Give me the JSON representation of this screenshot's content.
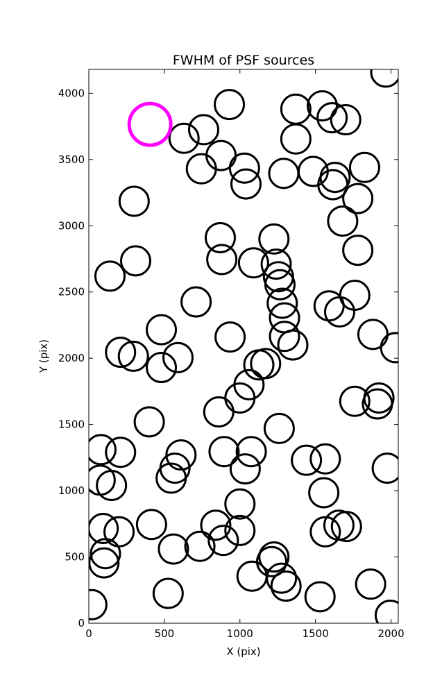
{
  "chart_data": {
    "type": "scatter",
    "title": "FWHM of PSF sources",
    "xlabel": "X (pix)",
    "ylabel": "Y (pix)",
    "xlim": [
      0,
      2048
    ],
    "ylim": [
      0,
      4180
    ],
    "xticks": [
      0,
      500,
      1000,
      1500,
      2000
    ],
    "yticks": [
      0,
      500,
      1000,
      1500,
      2000,
      2500,
      3000,
      3500,
      4000
    ],
    "grid": false,
    "marker": "open circle",
    "point_color": "#000000",
    "highlight_color": "#ff00ff",
    "highlight": {
      "x": 405,
      "y": 3765
    },
    "points": [
      {
        "x": 1965,
        "y": 4160
      },
      {
        "x": 930,
        "y": 3915
      },
      {
        "x": 1370,
        "y": 3880
      },
      {
        "x": 1545,
        "y": 3905
      },
      {
        "x": 1610,
        "y": 3815
      },
      {
        "x": 1700,
        "y": 3800
      },
      {
        "x": 760,
        "y": 3725
      },
      {
        "x": 630,
        "y": 3660
      },
      {
        "x": 1370,
        "y": 3655
      },
      {
        "x": 875,
        "y": 3530
      },
      {
        "x": 745,
        "y": 3430
      },
      {
        "x": 1030,
        "y": 3435
      },
      {
        "x": 1290,
        "y": 3395
      },
      {
        "x": 1485,
        "y": 3410
      },
      {
        "x": 1630,
        "y": 3365
      },
      {
        "x": 1615,
        "y": 3310
      },
      {
        "x": 1040,
        "y": 3315
      },
      {
        "x": 1825,
        "y": 3440
      },
      {
        "x": 300,
        "y": 3185
      },
      {
        "x": 1780,
        "y": 3205
      },
      {
        "x": 1680,
        "y": 3035
      },
      {
        "x": 870,
        "y": 2910
      },
      {
        "x": 1225,
        "y": 2900
      },
      {
        "x": 880,
        "y": 2745
      },
      {
        "x": 1090,
        "y": 2720
      },
      {
        "x": 1240,
        "y": 2710
      },
      {
        "x": 1780,
        "y": 2815
      },
      {
        "x": 310,
        "y": 2735
      },
      {
        "x": 140,
        "y": 2620
      },
      {
        "x": 1255,
        "y": 2615
      },
      {
        "x": 1265,
        "y": 2555
      },
      {
        "x": 710,
        "y": 2425
      },
      {
        "x": 1280,
        "y": 2415
      },
      {
        "x": 1590,
        "y": 2395
      },
      {
        "x": 1660,
        "y": 2350
      },
      {
        "x": 1760,
        "y": 2475
      },
      {
        "x": 480,
        "y": 2215
      },
      {
        "x": 1295,
        "y": 2305
      },
      {
        "x": 935,
        "y": 2160
      },
      {
        "x": 1295,
        "y": 2165
      },
      {
        "x": 1350,
        "y": 2100
      },
      {
        "x": 1880,
        "y": 2180
      },
      {
        "x": 2030,
        "y": 2080
      },
      {
        "x": 210,
        "y": 2045
      },
      {
        "x": 295,
        "y": 2015
      },
      {
        "x": 590,
        "y": 2005
      },
      {
        "x": 480,
        "y": 1930
      },
      {
        "x": 1125,
        "y": 1950
      },
      {
        "x": 1170,
        "y": 1960
      },
      {
        "x": 1060,
        "y": 1800
      },
      {
        "x": 1000,
        "y": 1700
      },
      {
        "x": 1920,
        "y": 1700
      },
      {
        "x": 1760,
        "y": 1675
      },
      {
        "x": 1910,
        "y": 1655
      },
      {
        "x": 860,
        "y": 1595
      },
      {
        "x": 400,
        "y": 1520
      },
      {
        "x": 1260,
        "y": 1470
      },
      {
        "x": 80,
        "y": 1310
      },
      {
        "x": 210,
        "y": 1290
      },
      {
        "x": 610,
        "y": 1270
      },
      {
        "x": 895,
        "y": 1295
      },
      {
        "x": 1075,
        "y": 1295
      },
      {
        "x": 1440,
        "y": 1230
      },
      {
        "x": 1565,
        "y": 1240
      },
      {
        "x": 570,
        "y": 1170
      },
      {
        "x": 1035,
        "y": 1165
      },
      {
        "x": 1975,
        "y": 1170
      },
      {
        "x": 545,
        "y": 1095
      },
      {
        "x": 75,
        "y": 1080
      },
      {
        "x": 150,
        "y": 1040
      },
      {
        "x": 1555,
        "y": 985
      },
      {
        "x": 1000,
        "y": 900
      },
      {
        "x": 415,
        "y": 745
      },
      {
        "x": 840,
        "y": 740
      },
      {
        "x": 95,
        "y": 715
      },
      {
        "x": 200,
        "y": 690
      },
      {
        "x": 1000,
        "y": 700
      },
      {
        "x": 1565,
        "y": 690
      },
      {
        "x": 1655,
        "y": 740
      },
      {
        "x": 1705,
        "y": 730
      },
      {
        "x": 890,
        "y": 625
      },
      {
        "x": 735,
        "y": 580
      },
      {
        "x": 560,
        "y": 560
      },
      {
        "x": 110,
        "y": 525
      },
      {
        "x": 100,
        "y": 455
      },
      {
        "x": 1225,
        "y": 500
      },
      {
        "x": 1210,
        "y": 465
      },
      {
        "x": 1080,
        "y": 355
      },
      {
        "x": 1275,
        "y": 340
      },
      {
        "x": 1305,
        "y": 280
      },
      {
        "x": 1865,
        "y": 295
      },
      {
        "x": 525,
        "y": 225
      },
      {
        "x": 1530,
        "y": 200
      },
      {
        "x": 20,
        "y": 140
      },
      {
        "x": 1995,
        "y": 60
      }
    ]
  }
}
